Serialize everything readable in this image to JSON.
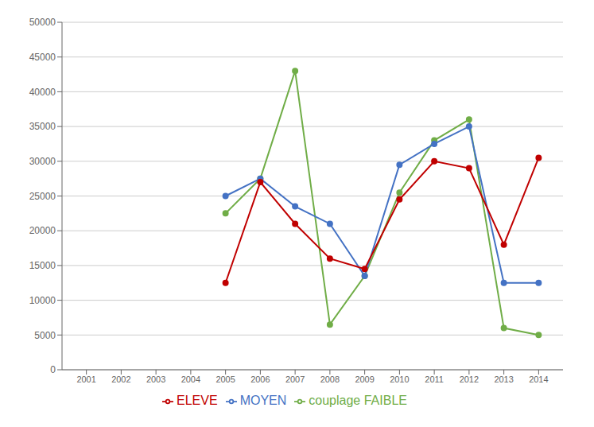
{
  "chart_data": {
    "type": "line",
    "x": [
      2005,
      2006,
      2007,
      2008,
      2009,
      2010,
      2011,
      2012,
      2013,
      2014
    ],
    "series": [
      {
        "name": "couplage FAIBLE",
        "color": "#70AD47",
        "values": [
          22500,
          27500,
          43000,
          6500,
          13500,
          25500,
          33000,
          36000,
          6000,
          5000
        ]
      },
      {
        "name": "MOYEN",
        "color": "#4472C4",
        "values": [
          25000,
          27500,
          23500,
          21000,
          13500,
          29500,
          32500,
          35000,
          12500,
          12500
        ]
      },
      {
        "name": "ELEVE",
        "color": "#C00000",
        "values": [
          12500,
          27000,
          21000,
          16000,
          14500,
          24500,
          30000,
          29000,
          18000,
          30500
        ]
      }
    ],
    "marker": "o",
    "xlim": [
      2000.3,
      2014.7
    ],
    "xticks": [
      2001,
      2002,
      2003,
      2004,
      2005,
      2006,
      2007,
      2008,
      2009,
      2010,
      2011,
      2012,
      2013,
      2014
    ],
    "ylim": [
      0,
      50000
    ],
    "yticks": [
      0,
      5000,
      10000,
      15000,
      20000,
      25000,
      30000,
      35000,
      40000,
      45000,
      50000
    ],
    "grid": true,
    "legend": "bottom"
  }
}
